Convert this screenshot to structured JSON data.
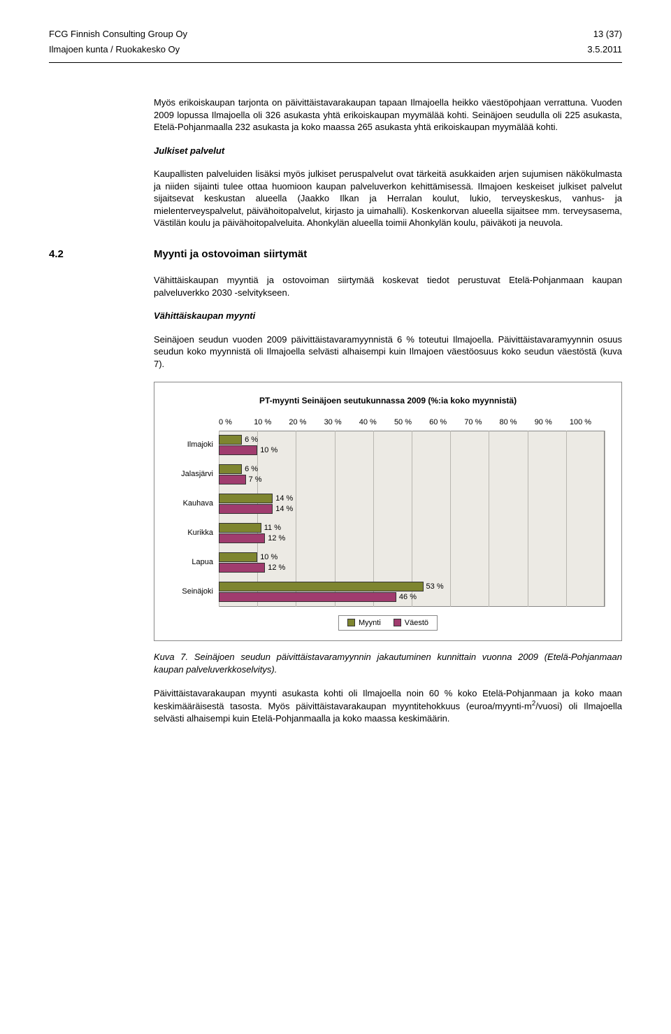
{
  "header": {
    "company": "FCG Finnish Consulting Group Oy",
    "page": "13 (37)",
    "client": "Ilmajoen kunta / Ruokakesko Oy",
    "date": "3.5.2011"
  },
  "para1": "Myös erikoiskaupan tarjonta on päivittäistavarakaupan tapaan Ilmajoella heikko väestöpohjaan verrattuna. Vuoden 2009 lopussa Ilmajoella oli 326 asukasta yhtä erikoiskaupan myymälää kohti. Seinäjoen seudulla oli 225 asukasta, Etelä-Pohjanmaalla 232 asukasta ja koko maassa 265 asukasta yhtä erikoiskaupan myymälää kohti.",
  "sub1": "Julkiset palvelut",
  "para2": "Kaupallisten palveluiden lisäksi myös julkiset peruspalvelut ovat tärkeitä asukkaiden arjen sujumisen näkökulmasta ja niiden sijainti tulee ottaa huomioon kaupan palveluverkon kehittämisessä. Ilmajoen keskeiset julkiset palvelut sijaitsevat keskustan alueella (Jaakko Ilkan ja Herralan koulut, lukio, terveyskeskus, vanhus- ja mielenterveyspalvelut, päivähoitopalvelut, kirjasto ja uimahalli). Koskenkorvan alueella sijaitsee mm. terveysasema, Västilän koulu ja päivähoitopalveluita. Ahonkylän alueella toimii Ahonkylän koulu, päiväkoti ja neuvola.",
  "section": {
    "num": "4.2",
    "title": "Myynti ja ostovoiman siirtymät"
  },
  "para3": "Vähittäiskaupan myyntiä ja ostovoiman siirtymää koskevat tiedot perustuvat Etelä-Pohjanmaan kaupan palveluverkko 2030 -selvitykseen.",
  "sub2": "Vähittäiskaupan myynti",
  "para4": "Seinäjoen seudun vuoden 2009 päivittäistavaramyynnistä 6 % toteutui Ilmajoella. Päivittäistavaramyynnin osuus seudun koko myynnistä oli Ilmajoella selvästi alhaisempi kuin Ilmajoen väestöosuus koko seudun väestöstä (kuva 7).",
  "chart": {
    "title": "PT-myynti Seinäjoen seutukunnassa 2009 (%:ia koko myynnistä)",
    "xticks": [
      "0 %",
      "10 %",
      "20 %",
      "30 %",
      "40 %",
      "50 %",
      "60 %",
      "70 %",
      "80 %",
      "90 %",
      "100 %"
    ],
    "xmax": 100,
    "categories": [
      "Ilmajoki",
      "Jalasjärvi",
      "Kauhava",
      "Kurikka",
      "Lapua",
      "Seinäjoki"
    ],
    "series_a": {
      "label": "Myynti",
      "color": "#7e852f",
      "values": [
        6,
        6,
        14,
        11,
        10,
        53
      ]
    },
    "series_b": {
      "label": "Väestö",
      "color": "#a03c6e",
      "values": [
        10,
        7,
        14,
        12,
        12,
        46
      ]
    },
    "value_suffix": " %",
    "background": "#eceae4",
    "grid_color": "#b8b6b0"
  },
  "caption": "Kuva 7. Seinäjoen seudun päivittäistavaramyynnin jakautuminen kunnittain vuonna 2009 (Etelä-Pohjanmaan kaupan palveluverkkoselvitys).",
  "para5_pre": "Päivittäistavarakaupan myynti asukasta kohti oli Ilmajoella noin 60 % koko Etelä-Pohjanmaan ja koko maan keskimääräisestä tasosta. Myös päivittäistavarakaupan myyntitehokkuus (euroa/myynti-m",
  "para5_sup": "2",
  "para5_post": "/vuosi) oli Ilmajoella selvästi alhaisempi kuin Etelä-Pohjanmaalla ja koko maassa keskimäärin."
}
